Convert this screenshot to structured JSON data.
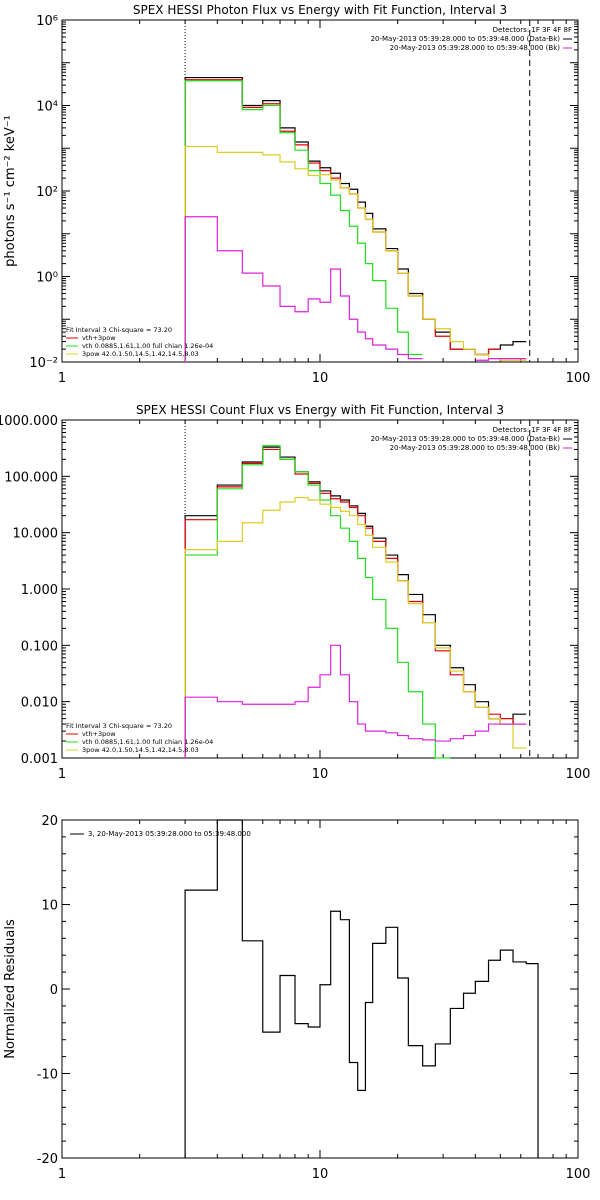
{
  "figure": {
    "colors": {
      "black": "#000000",
      "red": "#dd0000",
      "green": "#22dd22",
      "yellow": "#ddcc22",
      "magenta": "#dd22dd"
    }
  },
  "chart_data": [
    {
      "type": "line",
      "title": "SPEX HESSI Photon Flux vs Energy with Fit Function, Interval 3",
      "ylabel": "photons s⁻¹ cm⁻² keV⁻¹",
      "xscale": "log",
      "yscale": "log",
      "xlim": [
        1,
        100
      ],
      "ylim": [
        0.01,
        1000000
      ],
      "xticks": [
        {
          "v": 1,
          "label": "1"
        },
        {
          "v": 10,
          "label": "10"
        },
        {
          "v": 100,
          "label": "100"
        }
      ],
      "yticks": [
        {
          "v": 0.01,
          "label": "10⁻²"
        },
        {
          "v": 1,
          "label": "10⁰"
        },
        {
          "v": 100,
          "label": "10²"
        },
        {
          "v": 10000,
          "label": "10⁴"
        },
        {
          "v": 1000000,
          "label": "10⁶"
        }
      ],
      "vlines": [
        {
          "x": 3.0,
          "style": "dotted"
        },
        {
          "x": 65,
          "style": "dashed"
        }
      ],
      "bin_edges": [
        3,
        4,
        5,
        6,
        7,
        8,
        9,
        10,
        11,
        12,
        13,
        14,
        15,
        16,
        18,
        20,
        22,
        25,
        28,
        32,
        36,
        40,
        45,
        50,
        56,
        63
      ],
      "series": [
        {
          "color": "black",
          "values": [
            45000,
            45000,
            10000,
            13000,
            3000,
            1400,
            500,
            350,
            260,
            150,
            110,
            55,
            30,
            13,
            4.5,
            1.5,
            0.4,
            0.1,
            0.05,
            0.02,
            0.02,
            0.015,
            0.02,
            0.025,
            0.03
          ]
        },
        {
          "color": "red",
          "values": [
            40000,
            40000,
            9000,
            11000,
            2500,
            1200,
            450,
            300,
            200,
            120,
            85,
            40,
            22,
            11,
            4,
            1.2,
            0.35,
            0.1,
            0.04,
            0.02,
            0.02,
            0.015,
            0.02,
            null,
            null
          ]
        },
        {
          "color": "green",
          "values": [
            38000,
            38000,
            8000,
            10000,
            2300,
            900,
            300,
            150,
            80,
            35,
            15,
            6,
            2,
            0.8,
            0.18,
            0.05,
            0.015,
            0.005,
            null,
            null,
            null,
            null,
            null,
            null,
            null
          ]
        },
        {
          "color": "yellow",
          "values": [
            1100,
            800,
            800,
            700,
            480,
            330,
            230,
            240,
            180,
            120,
            85,
            40,
            22,
            11,
            4,
            1.2,
            0.35,
            0.1,
            0.06,
            0.03,
            0.02,
            0.015,
            0.012,
            0.011,
            0.011
          ]
        },
        {
          "color": "magenta",
          "values": [
            25,
            4,
            1.2,
            0.6,
            0.2,
            0.15,
            0.3,
            0.25,
            1.5,
            0.35,
            0.1,
            0.05,
            0.035,
            0.025,
            0.02,
            0.015,
            0.012,
            0.008,
            0.006,
            0.008,
            0.009,
            0.011,
            0.012,
            0.012,
            0.012
          ]
        }
      ],
      "info_right": {
        "detectors": "Detectors: 1F 3F 4F 8F",
        "lines": [
          {
            "text": "20-May-2013 05:39:28.000 to 05:39:48.000 (Data-Bk)",
            "color": "black"
          },
          {
            "text": "20-May-2013 05:39:28.000 to 05:39:48.000 (Bk)",
            "color": "magenta"
          }
        ]
      },
      "info_left": [
        {
          "text": "Fit Interval 3   Chi-square = 73.20",
          "color": "black"
        },
        {
          "text": "vth+3pow",
          "color": "red"
        },
        {
          "text": "vth 0.0885,1.61,1.00  full chian 1.26e-04",
          "color": "green"
        },
        {
          "text": "3pow 42.0,1.50,14.5,1.42,14.5,8.03",
          "color": "yellow"
        }
      ]
    },
    {
      "type": "line",
      "title": "SPEX HESSI Count Flux vs Energy with Fit Function, Interval 3",
      "ylabel": "",
      "xscale": "log",
      "yscale": "log",
      "xlim": [
        1,
        100
      ],
      "ylim": [
        0.001,
        1000
      ],
      "xticks": [
        {
          "v": 1,
          "label": "1"
        },
        {
          "v": 10,
          "label": "10"
        },
        {
          "v": 100,
          "label": "100"
        }
      ],
      "yticks": [
        {
          "v": 0.001,
          "label": "0.001"
        },
        {
          "v": 0.01,
          "label": "0.010"
        },
        {
          "v": 0.1,
          "label": "0.100"
        },
        {
          "v": 1,
          "label": "1.000"
        },
        {
          "v": 10,
          "label": "10.000"
        },
        {
          "v": 100,
          "label": "100.000"
        },
        {
          "v": 1000,
          "label": "1000.000"
        }
      ],
      "vlines": [
        {
          "x": 3.0,
          "style": "dotted"
        },
        {
          "x": 65,
          "style": "dashed"
        }
      ],
      "bin_edges": [
        3,
        4,
        5,
        6,
        7,
        8,
        9,
        10,
        11,
        12,
        13,
        14,
        15,
        16,
        18,
        20,
        22,
        25,
        28,
        32,
        36,
        40,
        45,
        50,
        56,
        63
      ],
      "series": [
        {
          "color": "black",
          "values": [
            20,
            70,
            180,
            330,
            220,
            120,
            80,
            55,
            45,
            38,
            30,
            22,
            13,
            8,
            4,
            1.8,
            0.8,
            0.35,
            0.1,
            0.04,
            0.02,
            0.01,
            0.005,
            0.004,
            0.006
          ]
        },
        {
          "color": "red",
          "values": [
            17,
            65,
            170,
            300,
            200,
            110,
            75,
            50,
            40,
            35,
            28,
            20,
            12,
            7,
            3.5,
            1.4,
            0.6,
            0.25,
            0.08,
            0.03,
            0.015,
            0.008,
            0.006,
            0.005,
            0.004
          ]
        },
        {
          "color": "green",
          "values": [
            4,
            60,
            160,
            350,
            200,
            120,
            70,
            38,
            20,
            12,
            7,
            3.5,
            1.6,
            0.65,
            0.2,
            0.05,
            0.015,
            0.004,
            0.001,
            null,
            null,
            null,
            null,
            null,
            null
          ]
        },
        {
          "color": "yellow",
          "values": [
            5,
            7,
            15,
            25,
            35,
            42,
            38,
            32,
            28,
            24,
            20,
            14,
            9,
            5.5,
            3,
            1.4,
            0.55,
            0.25,
            0.09,
            0.035,
            0.015,
            0.008,
            0.005,
            0.004,
            0.0015
          ]
        },
        {
          "color": "magenta",
          "values": [
            0.012,
            0.01,
            0.009,
            0.009,
            0.009,
            0.01,
            0.018,
            0.03,
            0.1,
            0.03,
            0.01,
            0.004,
            0.003,
            0.003,
            0.0028,
            0.0025,
            0.0022,
            0.0021,
            0.002,
            0.0022,
            0.0025,
            0.003,
            0.004,
            0.004,
            0.004
          ]
        }
      ],
      "info_right": {
        "detectors": "Detectors: 1F 3F 4F 8F",
        "lines": [
          {
            "text": "20-May-2013 05:39:28.000 to 05:39:48.000 (Data-Bk)",
            "color": "black"
          },
          {
            "text": "20-May-2013 05:39:28.000 to 05:39:48.000 (Bk)",
            "color": "magenta"
          }
        ]
      },
      "info_left": [
        {
          "text": "Fit Interval 3   Chi-square = 73.20",
          "color": "black"
        },
        {
          "text": "vth+3pow",
          "color": "red"
        },
        {
          "text": "vth 0.0885,1.61,1.00  full chian 1.26e-04",
          "color": "green"
        },
        {
          "text": "3pow 42.0,1.50,14.5,1.42,14.5,8.03",
          "color": "yellow"
        }
      ]
    },
    {
      "type": "line",
      "title": "",
      "ylabel": "Normalized Residuals",
      "xscale": "log",
      "yscale": "linear",
      "xlim": [
        1,
        100
      ],
      "ylim": [
        -20,
        20
      ],
      "xticks": [
        {
          "v": 1,
          "label": "1"
        },
        {
          "v": 10,
          "label": "10"
        },
        {
          "v": 100,
          "label": "100"
        }
      ],
      "yticks": [
        {
          "v": -20,
          "label": "-20"
        },
        {
          "v": -10,
          "label": "-10"
        },
        {
          "v": 0,
          "label": "0"
        },
        {
          "v": 10,
          "label": "10"
        },
        {
          "v": 20,
          "label": "20"
        }
      ],
      "vlines": [],
      "bin_edges": [
        3,
        4,
        5,
        6,
        7,
        8,
        9,
        10,
        11,
        12,
        13,
        14,
        15,
        16,
        18,
        20,
        22,
        25,
        28,
        32,
        36,
        40,
        45,
        50,
        56,
        63,
        70
      ],
      "series": [
        {
          "color": "black",
          "drop_to_min": true,
          "values": [
            11.7,
            20,
            5.7,
            -5.1,
            1.6,
            -4.1,
            -4.5,
            0.5,
            9.2,
            8.2,
            -8.7,
            -12,
            -1.6,
            5.4,
            7.3,
            1.3,
            -6.7,
            -9.1,
            -6.5,
            -2.3,
            -0.5,
            0.9,
            3.4,
            4.6,
            3.2,
            3.0
          ]
        }
      ],
      "legend": [
        {
          "text": "3, 20-May-2013 05:39:28.000 to 05:39:48.000",
          "color": "black"
        }
      ]
    }
  ]
}
